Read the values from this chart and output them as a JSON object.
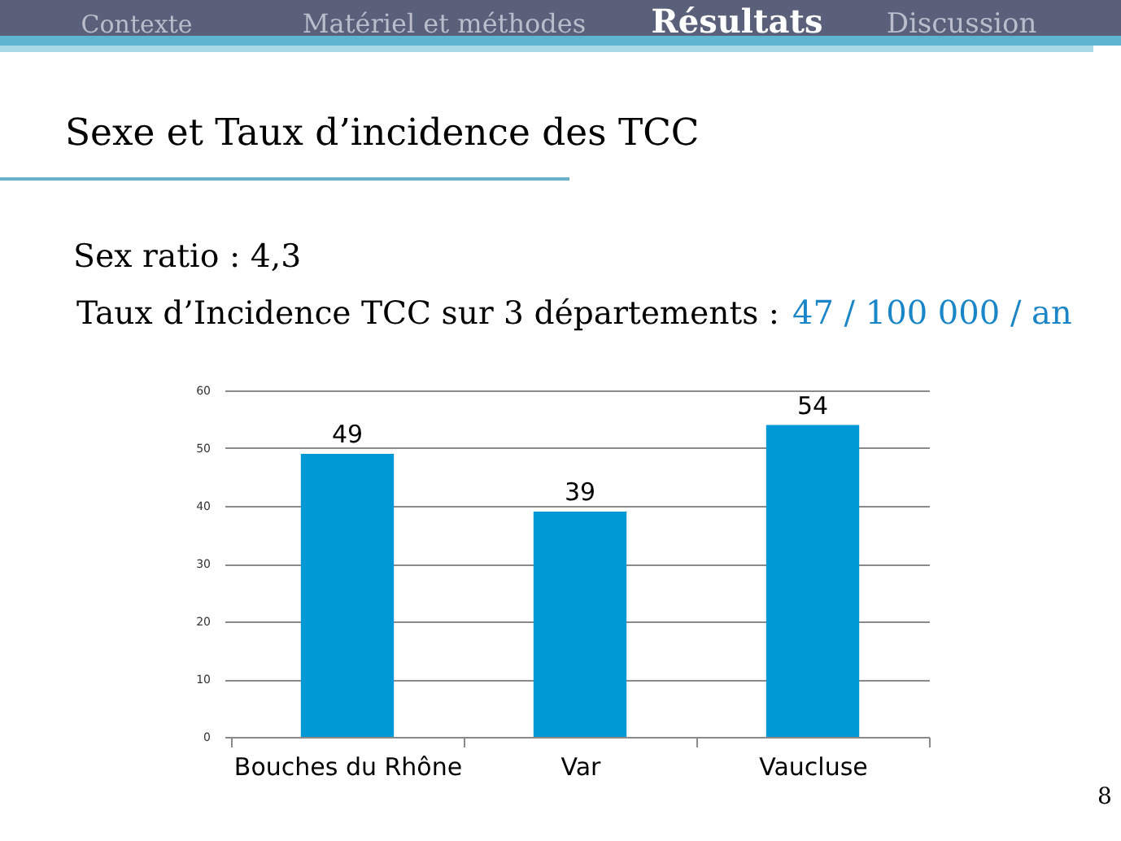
{
  "chart_data": {
    "type": "bar",
    "title": "Sexe et Taux d’incidence des TCC",
    "categories": [
      "Bouches du Rhône",
      "Var",
      "Vaucluse"
    ],
    "values": [
      49,
      39,
      54
    ],
    "color": "#0099d5",
    "ylim": [
      0,
      60
    ],
    "yticks": [
      0,
      10,
      20,
      30,
      40,
      50,
      60
    ],
    "grid": "y",
    "data_labels": true,
    "annotations": [
      "Contexte",
      "Matériel et méthodes",
      "Résultats",
      "Discussion",
      "Sex ratio : 4,3",
      "Taux d’Incidence TCC sur 3 départements :",
      "47 / 100 000 / an",
      "8"
    ]
  }
}
